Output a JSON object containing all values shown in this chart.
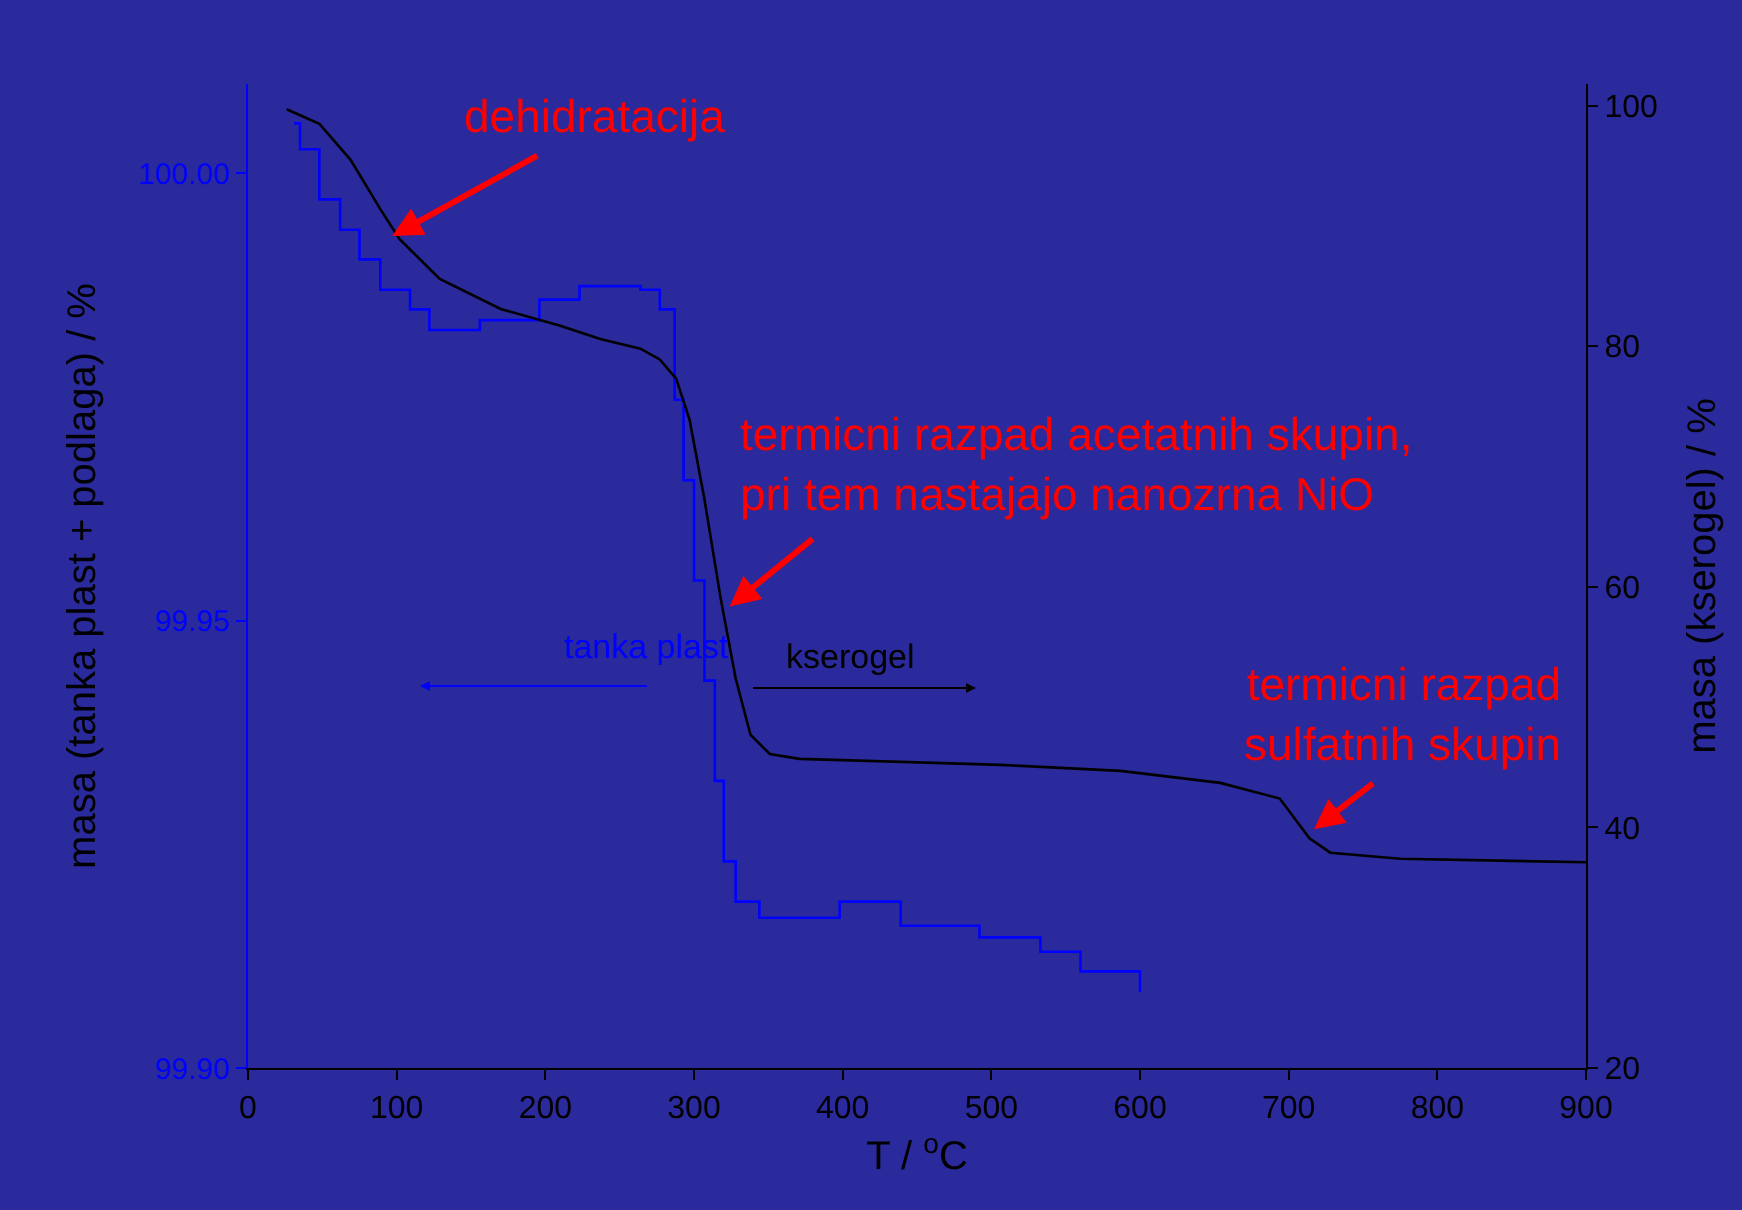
{
  "chart_data": {
    "type": "line",
    "xlabel": "T / $^{o}$C",
    "ylabel": "masa (tanka plast + podlaga) / %",
    "y2label": "masa (kserogel) / %",
    "xlim": [
      0,
      900
    ],
    "xticks": [
      0,
      100,
      200,
      300,
      400,
      500,
      600,
      700,
      800,
      900
    ],
    "ylim": [
      99.9,
      100.01
    ],
    "yticks": [
      {
        "value": 99.9,
        "label": "99.90"
      },
      {
        "value": 99.95,
        "label": "99.95"
      },
      {
        "value": 100.0,
        "label": "100.00"
      }
    ],
    "y2lim": [
      20,
      101.8
    ],
    "y2ticks": [
      20,
      40,
      60,
      80,
      100
    ],
    "grid": false,
    "legend": false,
    "series": [
      {
        "name": "tanka plast",
        "type": "step",
        "color": "#0000ff",
        "axis": "y",
        "x": [
          31,
          35,
          48,
          62,
          75,
          89,
          109,
          122,
          156,
          196,
          223,
          264,
          277,
          287,
          293,
          300,
          307,
          314,
          320,
          328,
          344,
          398,
          439,
          492,
          533,
          560,
          600
        ],
        "values": [
          100.0056,
          100.0027,
          99.9971,
          99.9937,
          99.9904,
          99.987,
          99.9848,
          99.9825,
          99.9836,
          99.9859,
          99.9874,
          99.987,
          99.9848,
          99.9747,
          99.9657,
          99.9545,
          99.9433,
          99.9321,
          99.9231,
          99.9186,
          99.9168,
          99.9186,
          99.9159,
          99.9146,
          99.913,
          99.9108,
          99.9085
        ]
      },
      {
        "name": "kserogel",
        "color": "#000000",
        "axis": "y2",
        "x": [
          26,
          48,
          69,
          89,
          102,
          129,
          170,
          210,
          237,
          264,
          277,
          288,
          297,
          307,
          318,
          328,
          338,
          351,
          371,
          506,
          587,
          654,
          694,
          714,
          728,
          775,
          900
        ],
        "values": [
          99.7,
          98.5,
          95.5,
          91.4,
          88.9,
          85.6,
          83.1,
          81.7,
          80.6,
          79.8,
          78.9,
          77.3,
          73.9,
          67.3,
          59.0,
          52.4,
          47.7,
          46.1,
          45.7,
          45.2,
          44.7,
          43.7,
          42.4,
          39.1,
          37.9,
          37.4,
          37.1
        ]
      }
    ],
    "annotations": [
      {
        "text": "dehidratacija",
        "x": 97,
        "y": 99.993
      },
      {
        "text": "termicni razpad acetatnih skupin,\npri tem nastajajo nanozrna NiO",
        "x": 324,
        "y": 99.9516
      },
      {
        "text": "termicni razpad\nsulfatnih skupin",
        "x": 717,
        "y": 99.9267
      }
    ]
  }
}
